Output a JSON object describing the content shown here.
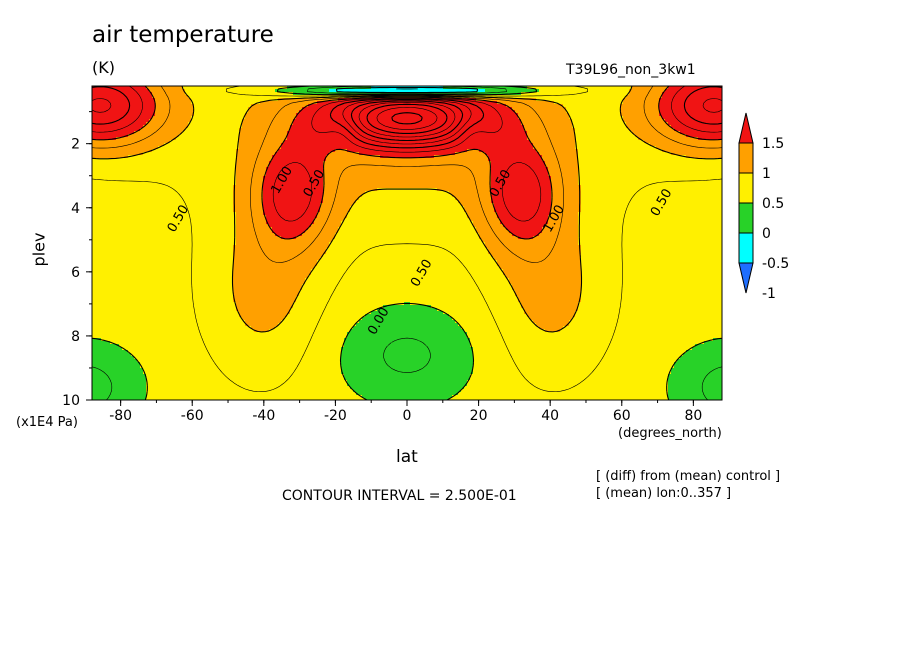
{
  "header": {
    "title": "air temperature",
    "units": "(K)",
    "run_name": "T39L96_non_3kw1"
  },
  "footer": {
    "contour_interval": "CONTOUR INTERVAL = 2.500E-01",
    "note_diff": "[ (diff) from (mean) control ]",
    "note_mean": "[ (mean) lon:0..357 ]"
  },
  "chart_data": {
    "type": "contour",
    "title": "air temperature",
    "xlabel": "lat",
    "x_units": "(degrees_north)",
    "ylabel": "plev",
    "y_units": "(x1E4 Pa)",
    "xlim": [
      -88,
      88
    ],
    "ylim": [
      10,
      0.2
    ],
    "x_ticks": [
      -80,
      -60,
      -40,
      -20,
      0,
      20,
      40,
      60,
      80
    ],
    "y_ticks": [
      2,
      4,
      6,
      8,
      10
    ],
    "colorbar": {
      "levels": [
        -1,
        -0.5,
        0,
        0.5,
        1,
        1.5
      ],
      "tick_labels": [
        "1.5",
        "1",
        "0.5",
        "0",
        "-0.5",
        "-1"
      ],
      "colors": [
        "#1e6eff",
        "#00ffff",
        "#28d228",
        "#fff000",
        "#ffa000",
        "#f01414"
      ]
    },
    "contour_interval": 0.25,
    "contour_labels": [
      {
        "text": "0.50",
        "lat": -63,
        "plev": 4.4
      },
      {
        "text": "1.00",
        "lat": -34,
        "plev": 3.2
      },
      {
        "text": "0.50",
        "lat": -25,
        "plev": 3.3
      },
      {
        "text": "0.50",
        "lat": 5,
        "plev": 6.1
      },
      {
        "text": "0.00",
        "lat": -7,
        "plev": 7.6
      },
      {
        "text": "0.50",
        "lat": 27,
        "plev": 3.3
      },
      {
        "text": "1.00",
        "lat": 42,
        "plev": 4.4
      },
      {
        "text": "0.50",
        "lat": 72,
        "plev": 3.9
      }
    ]
  }
}
